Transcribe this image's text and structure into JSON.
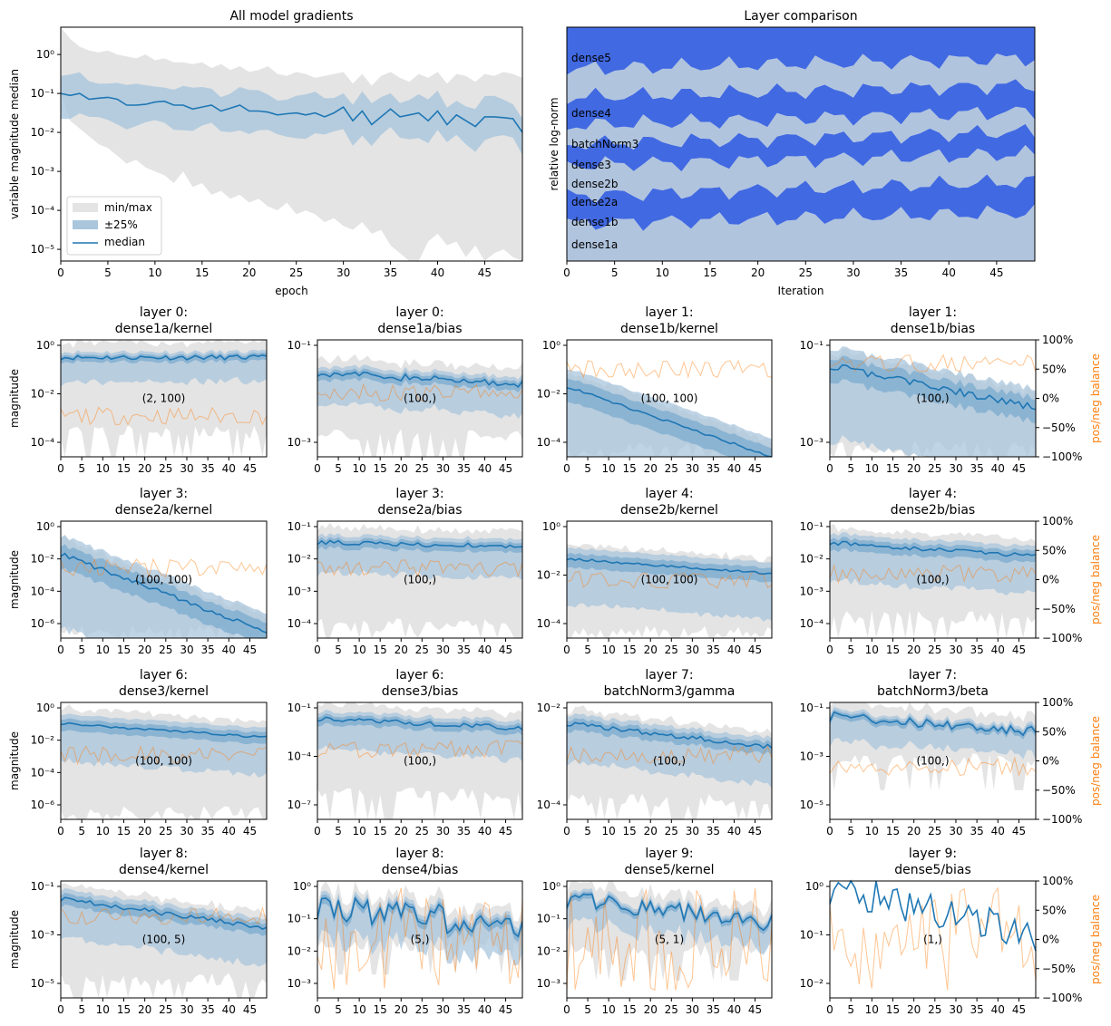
{
  "colors": {
    "minmax": "#e4e4e4",
    "band": "#a9c6dc",
    "band_dark": "#7faed0",
    "median": "#1f77b4",
    "balance": "#ff7f0e",
    "layer_dark": "#4169e1",
    "layer_light": "#b0c4de"
  },
  "chart_data": [
    {
      "id": "all-gradients",
      "type": "area",
      "title": "All model gradients",
      "xlabel": "epoch",
      "ylabel": "variable magnitude median",
      "xlim": [
        0,
        49
      ],
      "ylim_log10": [
        -5.3,
        0.7
      ],
      "xticks": [
        "0",
        "5",
        "10",
        "15",
        "20",
        "25",
        "30",
        "35",
        "40",
        "45"
      ],
      "yticks": [
        "10⁰",
        "10⁻¹",
        "10⁻²",
        "10⁻³",
        "10⁻⁴",
        "10⁻⁵"
      ],
      "legend": {
        "position": "bottom-left",
        "entries": [
          "min/max",
          "±25%",
          "median"
        ]
      },
      "series": [
        {
          "name": "median (log10)",
          "values": [
            -1.0,
            -1.05,
            -1.0,
            -1.15,
            -1.12,
            -1.1,
            -1.15,
            -1.3,
            -1.3,
            -1.28,
            -1.22,
            -1.2,
            -1.3,
            -1.3,
            -1.4,
            -1.35,
            -1.3,
            -1.45,
            -1.38,
            -1.3,
            -1.45,
            -1.45,
            -1.48,
            -1.55,
            -1.52,
            -1.5,
            -1.55,
            -1.5,
            -1.6,
            -1.5,
            -1.35,
            -1.7,
            -1.45,
            -1.8,
            -1.6,
            -1.4,
            -1.6,
            -1.55,
            -1.5,
            -1.7,
            -1.45,
            -1.8,
            -1.55,
            -1.7,
            -1.85,
            -1.6,
            -1.6,
            -1.62,
            -1.65,
            -2.0
          ]
        },
        {
          "name": "max (log10)",
          "values": [
            0.7,
            0.4,
            0.2,
            0.1,
            0.05,
            0.1,
            0.0,
            -0.05,
            -0.1,
            0.0,
            -0.15,
            -0.1,
            -0.2,
            -0.2,
            -0.25,
            -0.2,
            -0.35,
            -0.25,
            -0.4,
            -0.3,
            -0.45,
            -0.4,
            -0.3,
            -0.5,
            -0.55,
            -0.45,
            -0.5,
            -0.6,
            -0.55,
            -0.5,
            -0.45,
            -0.75,
            -0.5,
            -0.8,
            -0.55,
            -0.45,
            -0.6,
            -0.7,
            -0.5,
            -0.6,
            -0.45,
            -0.75,
            -0.5,
            -0.55,
            -0.7,
            -0.5,
            -0.55,
            -0.45,
            -0.5,
            -0.6
          ]
        },
        {
          "name": "min (log10)",
          "values": [
            -1.0,
            -1.7,
            -1.9,
            -2.1,
            -2.3,
            -2.4,
            -2.6,
            -2.8,
            -2.7,
            -2.9,
            -3.0,
            -3.1,
            -3.3,
            -3.0,
            -3.4,
            -3.3,
            -3.6,
            -3.5,
            -3.7,
            -3.6,
            -3.8,
            -3.7,
            -3.9,
            -4.0,
            -3.8,
            -4.1,
            -4.0,
            -4.1,
            -4.3,
            -4.2,
            -4.4,
            -4.5,
            -4.3,
            -4.6,
            -4.5,
            -4.9,
            -5.1,
            -5.5,
            -5.6,
            -4.8,
            -4.6,
            -4.9,
            -4.8,
            -5.2,
            -4.9,
            -5.3,
            -5.1,
            -5.0,
            -5.2,
            -5.3
          ]
        }
      ]
    },
    {
      "id": "layer-comparison",
      "type": "area",
      "title": "Layer comparison",
      "xlabel": "Iteration",
      "ylabel": "relative log-norm",
      "xlim": [
        0,
        49
      ],
      "xticks": [
        "0",
        "5",
        "10",
        "15",
        "20",
        "25",
        "30",
        "35",
        "40",
        "45"
      ],
      "layers": [
        "dense1a",
        "dense1b",
        "dense2a",
        "dense2b",
        "dense3",
        "batchNorm3",
        "dense4",
        "dense5"
      ],
      "boundaries": [
        {
          "base": 0.16,
          "amp": 0.08,
          "phase": 0.3
        },
        {
          "base": 0.28,
          "amp": 0.1,
          "phase": 1.1
        },
        {
          "base": 0.41,
          "amp": 0.08,
          "phase": 2.0
        },
        {
          "base": 0.5,
          "amp": 0.09,
          "phase": 2.7
        },
        {
          "base": 0.58,
          "amp": 0.1,
          "phase": 3.3
        },
        {
          "base": 0.7,
          "amp": 0.09,
          "phase": 4.1
        },
        {
          "base": 0.82,
          "amp": 0.08,
          "phase": 4.8
        }
      ]
    },
    {
      "type": "panel-grid",
      "ylabel": "magnitude",
      "right_axis_label": "pos/neg balance",
      "right_axis_ticks": [
        "100%",
        "50%",
        "0%",
        "−50%",
        "−100%"
      ],
      "xticks": [
        "0",
        "5",
        "10",
        "15",
        "20",
        "25",
        "30",
        "35",
        "40",
        "45"
      ],
      "panels": [
        {
          "layer": "layer 0:",
          "name": "dense1a/kernel",
          "shape": "(2, 100)",
          "yticks": [
            "10⁰",
            "10⁻²",
            "10⁻⁴"
          ],
          "med_start": 0.85,
          "med_end": 0.85,
          "noise": 0.02,
          "band": 0.06,
          "min_level": 0.15,
          "bal": 0.35,
          "right": false
        },
        {
          "layer": "layer 0:",
          "name": "dense1a/bias",
          "shape": "(100,)",
          "yticks": [
            "10⁻¹",
            "10⁻³"
          ],
          "med_start": 0.72,
          "med_end": 0.62,
          "noise": 0.03,
          "band": 0.08,
          "min_level": 0.12,
          "bal": 0.55,
          "right": false
        },
        {
          "layer": "layer 1:",
          "name": "dense1b/kernel",
          "shape": "(100, 100)",
          "yticks": [
            "10⁰",
            "10⁻²",
            "10⁻⁴"
          ],
          "med_start": 0.6,
          "med_end": 0.0,
          "noise": 0.01,
          "band": 0.2,
          "min_level": 0.0,
          "bal": 0.75,
          "right": false
        },
        {
          "layer": "layer 1:",
          "name": "dense1b/bias",
          "shape": "(100,)",
          "yticks": [
            "10⁻¹",
            "10⁻³"
          ],
          "med_start": 0.78,
          "med_end": 0.42,
          "noise": 0.03,
          "band": 0.2,
          "min_level": 0.02,
          "bal": 0.8,
          "right": true
        },
        {
          "layer": "layer 3:",
          "name": "dense2a/kernel",
          "shape": "(100, 100)",
          "yticks": [
            "10⁰",
            "10⁻²",
            "10⁻⁴",
            "10⁻⁶"
          ],
          "med_start": 0.72,
          "med_end": 0.05,
          "noise": 0.02,
          "band": 0.2,
          "min_level": 0.0,
          "bal": 0.6,
          "right": false
        },
        {
          "layer": "layer 3:",
          "name": "dense2a/bias",
          "shape": "(100,)",
          "yticks": [
            "10⁻¹",
            "10⁻²",
            "10⁻³",
            "10⁻⁴"
          ],
          "med_start": 0.82,
          "med_end": 0.78,
          "noise": 0.02,
          "band": 0.08,
          "min_level": 0.05,
          "bal": 0.6,
          "right": false
        },
        {
          "layer": "layer 4:",
          "name": "dense2b/kernel",
          "shape": "(100, 100)",
          "yticks": [
            "10⁰",
            "10⁻²",
            "10⁻⁴"
          ],
          "med_start": 0.68,
          "med_end": 0.55,
          "noise": 0.01,
          "band": 0.12,
          "min_level": 0.0,
          "bal": 0.5,
          "right": false
        },
        {
          "layer": "layer 4:",
          "name": "dense2b/bias",
          "shape": "(100,)",
          "yticks": [
            "10⁻¹",
            "10⁻²",
            "10⁻³",
            "10⁻⁴"
          ],
          "med_start": 0.82,
          "med_end": 0.7,
          "noise": 0.02,
          "band": 0.1,
          "min_level": 0.12,
          "bal": 0.55,
          "right": true
        },
        {
          "layer": "layer 6:",
          "name": "dense3/kernel",
          "shape": "(100, 100)",
          "yticks": [
            "10⁰",
            "10⁻²",
            "10⁻⁴",
            "10⁻⁶"
          ],
          "med_start": 0.82,
          "med_end": 0.7,
          "noise": 0.01,
          "band": 0.1,
          "min_level": 0.0,
          "bal": 0.55,
          "right": false
        },
        {
          "layer": "layer 6:",
          "name": "dense3/bias",
          "shape": "(100,)",
          "yticks": [
            "10⁻¹",
            "10⁻⁴",
            "10⁻⁷"
          ],
          "med_start": 0.86,
          "med_end": 0.78,
          "noise": 0.02,
          "band": 0.08,
          "min_level": 0.15,
          "bal": 0.6,
          "right": false
        },
        {
          "layer": "layer 7:",
          "name": "batchNorm3/gamma",
          "shape": "(100,)",
          "yticks": [
            "10⁻²",
            "10⁻⁴"
          ],
          "med_start": 0.82,
          "med_end": 0.62,
          "noise": 0.02,
          "band": 0.1,
          "min_level": 0.1,
          "bal": 0.55,
          "right": false
        },
        {
          "layer": "layer 7:",
          "name": "batchNorm3/beta",
          "shape": "(100,)",
          "yticks": [
            "10⁻¹",
            "10⁻³",
            "10⁻⁵"
          ],
          "med_start": 0.88,
          "med_end": 0.75,
          "noise": 0.04,
          "band": 0.06,
          "min_level": 0.45,
          "bal": 0.45,
          "right": true
        },
        {
          "layer": "layer 8:",
          "name": "dense4/kernel",
          "shape": "(100, 5)",
          "yticks": [
            "10⁻¹",
            "10⁻³",
            "10⁻⁵"
          ],
          "med_start": 0.85,
          "med_end": 0.6,
          "noise": 0.02,
          "band": 0.1,
          "min_level": 0.1,
          "bal": 0.7,
          "right": false
        },
        {
          "layer": "layer 8:",
          "name": "dense4/bias",
          "shape": "(5,)",
          "yticks": [
            "10⁰",
            "10⁻¹",
            "10⁻²",
            "10⁻³"
          ],
          "med_start": 0.8,
          "med_end": 0.6,
          "noise": 0.12,
          "band": 0.08,
          "min_level": 0.4,
          "bal": 0.5,
          "right": false
        },
        {
          "layer": "layer 9:",
          "name": "dense5/kernel",
          "shape": "(5, 1)",
          "yticks": [
            "10⁰",
            "10⁻¹",
            "10⁻²",
            "10⁻³"
          ],
          "med_start": 0.85,
          "med_end": 0.65,
          "noise": 0.08,
          "band": 0.06,
          "min_level": 0.35,
          "bal": 0.5,
          "right": false
        },
        {
          "layer": "layer 9:",
          "name": "dense5/bias",
          "shape": "(1,)",
          "yticks": [
            "10⁰",
            "10⁻¹",
            "10⁻²"
          ],
          "med_start": 0.95,
          "med_end": 0.55,
          "noise": 0.15,
          "band": 0.0,
          "min_level": -1,
          "bal": 0.5,
          "right": true
        }
      ]
    }
  ]
}
